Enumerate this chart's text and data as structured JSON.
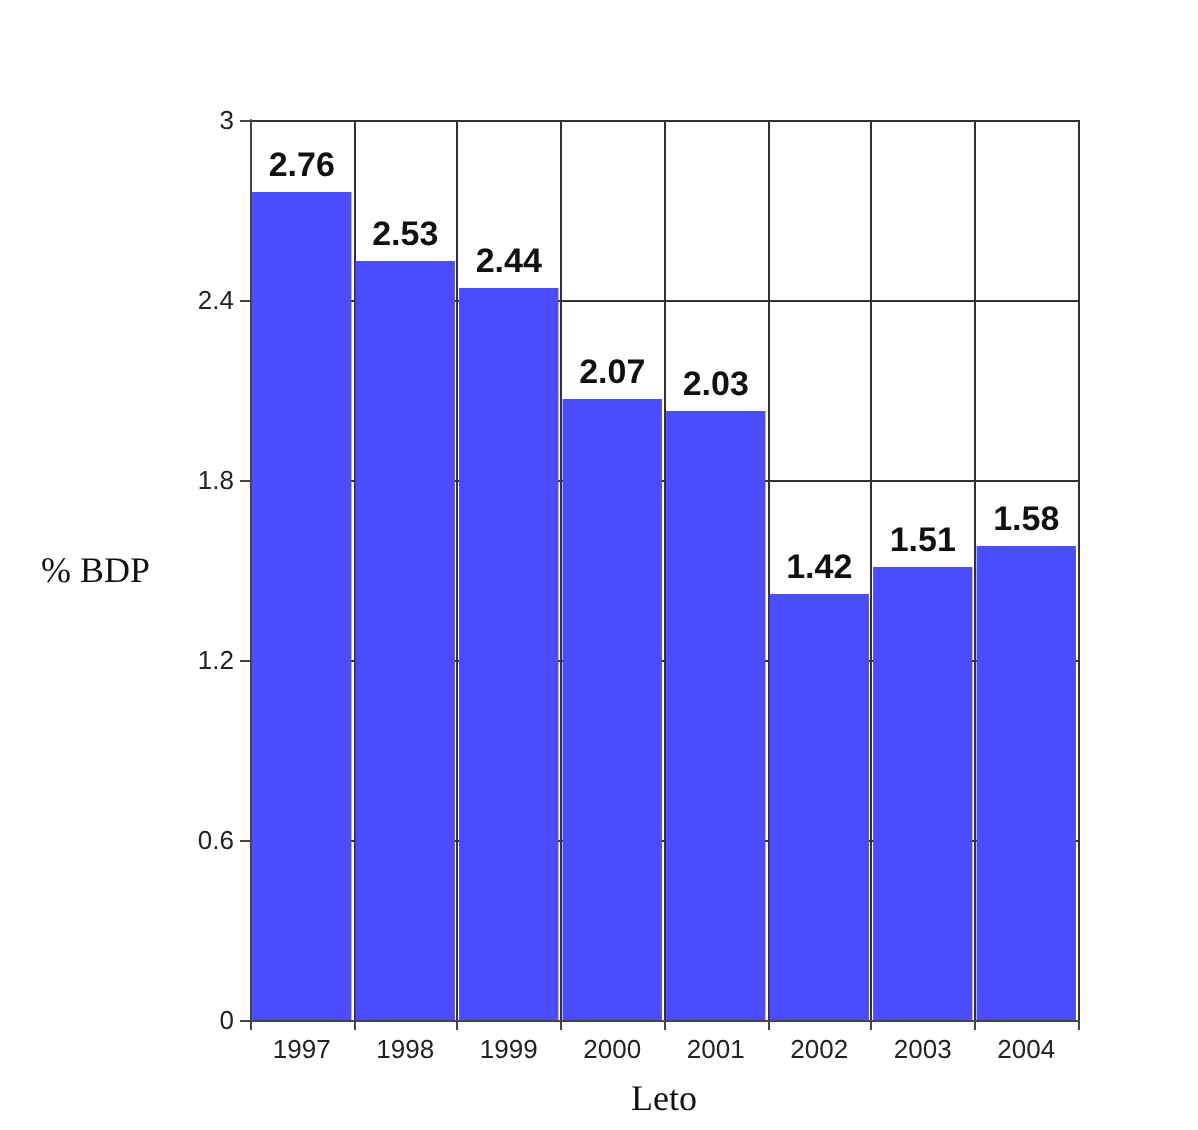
{
  "chart_data": {
    "type": "bar",
    "xlabel": "Leto",
    "ylabel": "% BDP",
    "categories": [
      "1997",
      "1998",
      "1999",
      "2000",
      "2001",
      "2002",
      "2003",
      "2004"
    ],
    "values": [
      2.76,
      2.53,
      2.44,
      2.07,
      2.03,
      1.42,
      1.51,
      1.58
    ],
    "color": "#4c4cff",
    "ylim": [
      0,
      3
    ],
    "yticks": [
      0,
      0.6,
      1.2,
      1.8,
      2.4,
      3
    ],
    "grid": true,
    "data_labels": true
  }
}
